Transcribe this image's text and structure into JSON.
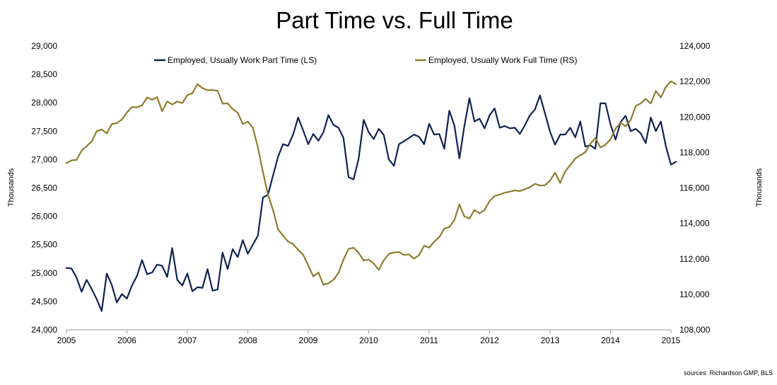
{
  "chart_data": {
    "type": "line",
    "title": "Part Time vs. Full Time",
    "xlabel": "",
    "ylabel_left": "Thousands",
    "ylabel_right": "Thousands",
    "source": "sources: Richardson GMP, BLS",
    "x_ticks": [
      "2005",
      "2006",
      "2007",
      "2008",
      "2009",
      "2010",
      "2011",
      "2012",
      "2013",
      "2014",
      "2015"
    ],
    "xlim": [
      2005,
      2015
    ],
    "y_left_ticks": [
      "24,000",
      "24,500",
      "25,000",
      "25,500",
      "26,000",
      "26,500",
      "27,000",
      "27,500",
      "28,000",
      "28,500",
      "29,000"
    ],
    "ylim_left": [
      24000,
      29000
    ],
    "y_right_ticks": [
      "108,000",
      "110,000",
      "112,000",
      "114,000",
      "116,000",
      "118,000",
      "120,000",
      "122,000",
      "124,000"
    ],
    "ylim_right": [
      108000,
      124000
    ],
    "grid": false,
    "legend_position": "top",
    "colors": {
      "part_time": "#0d2252",
      "full_time": "#8f7b2e",
      "axis": "#9a9a9a"
    },
    "series": [
      {
        "name": "Employed, Usually Work Part Time (LS)",
        "axis": "left",
        "color": "#0d2252",
        "points": [
          [
            2005.0,
            25090
          ],
          [
            2005.083,
            25080
          ],
          [
            2005.167,
            24920
          ],
          [
            2005.25,
            24670
          ],
          [
            2005.333,
            24880
          ],
          [
            2005.417,
            24720
          ],
          [
            2005.5,
            24540
          ],
          [
            2005.583,
            24330
          ],
          [
            2005.667,
            24990
          ],
          [
            2005.75,
            24790
          ],
          [
            2005.833,
            24480
          ],
          [
            2005.917,
            24630
          ],
          [
            2006.0,
            24550
          ],
          [
            2006.083,
            24780
          ],
          [
            2006.167,
            24950
          ],
          [
            2006.25,
            25230
          ],
          [
            2006.333,
            24980
          ],
          [
            2006.417,
            25010
          ],
          [
            2006.5,
            25150
          ],
          [
            2006.583,
            25130
          ],
          [
            2006.667,
            24930
          ],
          [
            2006.75,
            25440
          ],
          [
            2006.833,
            24880
          ],
          [
            2006.917,
            24780
          ],
          [
            2007.0,
            24990
          ],
          [
            2007.083,
            24680
          ],
          [
            2007.167,
            24750
          ],
          [
            2007.25,
            24740
          ],
          [
            2007.333,
            25070
          ],
          [
            2007.417,
            24690
          ],
          [
            2007.5,
            24710
          ],
          [
            2007.583,
            25360
          ],
          [
            2007.667,
            25070
          ],
          [
            2007.75,
            25420
          ],
          [
            2007.833,
            25280
          ],
          [
            2007.917,
            25580
          ],
          [
            2008.0,
            25340
          ],
          [
            2008.083,
            25500
          ],
          [
            2008.167,
            25660
          ],
          [
            2008.25,
            26330
          ],
          [
            2008.333,
            26380
          ],
          [
            2008.417,
            26720
          ],
          [
            2008.5,
            27050
          ],
          [
            2008.583,
            27270
          ],
          [
            2008.667,
            27240
          ],
          [
            2008.75,
            27440
          ],
          [
            2008.833,
            27740
          ],
          [
            2008.917,
            27510
          ],
          [
            2009.0,
            27270
          ],
          [
            2009.083,
            27450
          ],
          [
            2009.167,
            27330
          ],
          [
            2009.25,
            27480
          ],
          [
            2009.333,
            27780
          ],
          [
            2009.417,
            27610
          ],
          [
            2009.5,
            27560
          ],
          [
            2009.583,
            27380
          ],
          [
            2009.667,
            26690
          ],
          [
            2009.75,
            26650
          ],
          [
            2009.833,
            27010
          ],
          [
            2009.917,
            27700
          ],
          [
            2010.0,
            27480
          ],
          [
            2010.083,
            27360
          ],
          [
            2010.167,
            27540
          ],
          [
            2010.25,
            27430
          ],
          [
            2010.333,
            27000
          ],
          [
            2010.417,
            26890
          ],
          [
            2010.5,
            27270
          ],
          [
            2010.583,
            27320
          ],
          [
            2010.667,
            27380
          ],
          [
            2010.75,
            27440
          ],
          [
            2010.833,
            27400
          ],
          [
            2010.917,
            27270
          ],
          [
            2011.0,
            27630
          ],
          [
            2011.083,
            27440
          ],
          [
            2011.167,
            27450
          ],
          [
            2011.25,
            27190
          ],
          [
            2011.333,
            27860
          ],
          [
            2011.417,
            27600
          ],
          [
            2011.5,
            27020
          ],
          [
            2011.583,
            27590
          ],
          [
            2011.667,
            28080
          ],
          [
            2011.75,
            27670
          ],
          [
            2011.833,
            27720
          ],
          [
            2011.917,
            27550
          ],
          [
            2012.0,
            27780
          ],
          [
            2012.083,
            27900
          ],
          [
            2012.167,
            27560
          ],
          [
            2012.25,
            27590
          ],
          [
            2012.333,
            27550
          ],
          [
            2012.417,
            27560
          ],
          [
            2012.5,
            27450
          ],
          [
            2012.583,
            27600
          ],
          [
            2012.667,
            27780
          ],
          [
            2012.75,
            27880
          ],
          [
            2012.833,
            28130
          ],
          [
            2012.917,
            27810
          ],
          [
            2013.0,
            27490
          ],
          [
            2013.083,
            27260
          ],
          [
            2013.167,
            27440
          ],
          [
            2013.25,
            27440
          ],
          [
            2013.333,
            27560
          ],
          [
            2013.417,
            27390
          ],
          [
            2013.5,
            27670
          ],
          [
            2013.583,
            27230
          ],
          [
            2013.667,
            27250
          ],
          [
            2013.75,
            27190
          ],
          [
            2013.833,
            27990
          ],
          [
            2013.917,
            27990
          ],
          [
            2014.0,
            27620
          ],
          [
            2014.083,
            27350
          ],
          [
            2014.167,
            27660
          ],
          [
            2014.25,
            27770
          ],
          [
            2014.333,
            27500
          ],
          [
            2014.417,
            27540
          ],
          [
            2014.5,
            27460
          ],
          [
            2014.583,
            27290
          ],
          [
            2014.667,
            27740
          ],
          [
            2014.75,
            27500
          ],
          [
            2014.833,
            27670
          ],
          [
            2014.917,
            27230
          ],
          [
            2015.0,
            26910
          ],
          [
            2015.083,
            26960
          ]
        ]
      },
      {
        "name": "Employed, Usually Work Full Time (RS)",
        "axis": "right",
        "color": "#8f7b2e",
        "points": [
          [
            2005.0,
            117400
          ],
          [
            2005.083,
            117550
          ],
          [
            2005.167,
            117580
          ],
          [
            2005.25,
            118100
          ],
          [
            2005.333,
            118350
          ],
          [
            2005.417,
            118620
          ],
          [
            2005.5,
            119200
          ],
          [
            2005.583,
            119300
          ],
          [
            2005.667,
            119070
          ],
          [
            2005.75,
            119600
          ],
          [
            2005.833,
            119650
          ],
          [
            2005.917,
            119850
          ],
          [
            2006.0,
            120250
          ],
          [
            2006.083,
            120560
          ],
          [
            2006.167,
            120540
          ],
          [
            2006.25,
            120650
          ],
          [
            2006.333,
            121100
          ],
          [
            2006.417,
            120970
          ],
          [
            2006.5,
            121110
          ],
          [
            2006.583,
            120320
          ],
          [
            2006.667,
            120870
          ],
          [
            2006.75,
            120700
          ],
          [
            2006.833,
            120870
          ],
          [
            2006.917,
            120780
          ],
          [
            2007.0,
            121230
          ],
          [
            2007.083,
            121340
          ],
          [
            2007.167,
            121850
          ],
          [
            2007.25,
            121620
          ],
          [
            2007.333,
            121510
          ],
          [
            2007.417,
            121520
          ],
          [
            2007.5,
            121480
          ],
          [
            2007.583,
            120750
          ],
          [
            2007.667,
            120770
          ],
          [
            2007.75,
            120440
          ],
          [
            2007.833,
            120240
          ],
          [
            2007.917,
            119600
          ],
          [
            2008.0,
            119740
          ],
          [
            2008.083,
            119400
          ],
          [
            2008.167,
            118280
          ],
          [
            2008.25,
            116900
          ],
          [
            2008.333,
            115620
          ],
          [
            2008.417,
            114750
          ],
          [
            2008.5,
            113660
          ],
          [
            2008.583,
            113310
          ],
          [
            2008.667,
            112970
          ],
          [
            2008.75,
            112830
          ],
          [
            2008.833,
            112510
          ],
          [
            2008.917,
            112220
          ],
          [
            2009.0,
            111630
          ],
          [
            2009.083,
            111010
          ],
          [
            2009.167,
            111240
          ],
          [
            2009.25,
            110540
          ],
          [
            2009.333,
            110620
          ],
          [
            2009.417,
            110820
          ],
          [
            2009.5,
            111210
          ],
          [
            2009.583,
            111960
          ],
          [
            2009.667,
            112560
          ],
          [
            2009.75,
            112630
          ],
          [
            2009.833,
            112340
          ],
          [
            2009.917,
            111910
          ],
          [
            2010.0,
            111960
          ],
          [
            2010.083,
            111740
          ],
          [
            2010.167,
            111380
          ],
          [
            2010.25,
            111920
          ],
          [
            2010.333,
            112280
          ],
          [
            2010.417,
            112360
          ],
          [
            2010.5,
            112380
          ],
          [
            2010.583,
            112220
          ],
          [
            2010.667,
            112250
          ],
          [
            2010.75,
            112010
          ],
          [
            2010.833,
            112210
          ],
          [
            2010.917,
            112740
          ],
          [
            2011.0,
            112630
          ],
          [
            2011.083,
            112970
          ],
          [
            2011.167,
            113220
          ],
          [
            2011.25,
            113710
          ],
          [
            2011.333,
            113790
          ],
          [
            2011.417,
            114190
          ],
          [
            2011.5,
            115080
          ],
          [
            2011.583,
            114390
          ],
          [
            2011.667,
            114270
          ],
          [
            2011.75,
            114760
          ],
          [
            2011.833,
            114560
          ],
          [
            2011.917,
            114760
          ],
          [
            2012.0,
            115260
          ],
          [
            2012.083,
            115540
          ],
          [
            2012.167,
            115620
          ],
          [
            2012.25,
            115730
          ],
          [
            2012.333,
            115790
          ],
          [
            2012.417,
            115860
          ],
          [
            2012.5,
            115820
          ],
          [
            2012.583,
            115930
          ],
          [
            2012.667,
            116040
          ],
          [
            2012.75,
            116230
          ],
          [
            2012.833,
            116130
          ],
          [
            2012.917,
            116150
          ],
          [
            2013.0,
            116410
          ],
          [
            2013.083,
            116860
          ],
          [
            2013.167,
            116280
          ],
          [
            2013.25,
            116940
          ],
          [
            2013.333,
            117280
          ],
          [
            2013.417,
            117660
          ],
          [
            2013.5,
            117830
          ],
          [
            2013.583,
            118010
          ],
          [
            2013.667,
            118490
          ],
          [
            2013.75,
            118820
          ],
          [
            2013.833,
            118280
          ],
          [
            2013.917,
            118430
          ],
          [
            2014.0,
            118750
          ],
          [
            2014.083,
            119340
          ],
          [
            2014.167,
            119680
          ],
          [
            2014.25,
            119470
          ],
          [
            2014.333,
            119830
          ],
          [
            2014.417,
            120620
          ],
          [
            2014.5,
            120770
          ],
          [
            2014.583,
            121020
          ],
          [
            2014.667,
            120760
          ],
          [
            2014.75,
            121470
          ],
          [
            2014.833,
            121100
          ],
          [
            2014.917,
            121700
          ],
          [
            2015.0,
            122010
          ],
          [
            2015.083,
            121850
          ]
        ]
      }
    ]
  }
}
